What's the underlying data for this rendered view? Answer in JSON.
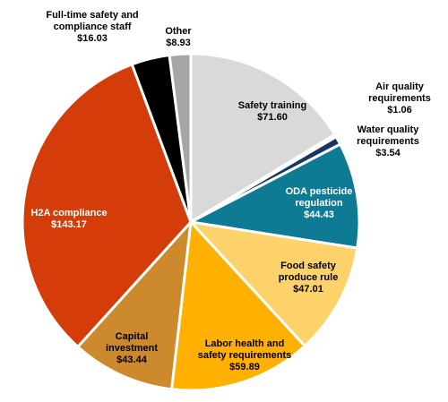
{
  "chart_data": {
    "type": "pie",
    "start": "top",
    "direction": "clockwise",
    "slices": [
      {
        "key": "safety_training",
        "label": [
          "Safety training",
          "$71.60"
        ],
        "value": 71.6,
        "color": "#d9d9d9",
        "text_color": "#000000"
      },
      {
        "key": "air_quality",
        "label": [
          "Air quality",
          "requirements",
          "$1.06"
        ],
        "value": 1.06,
        "color": "#ffffff",
        "text_color": "#000000"
      },
      {
        "key": "water_quality",
        "label": [
          "Water quality",
          "requirements",
          "$3.54"
        ],
        "value": 3.54,
        "color": "#17375e",
        "text_color": "#000000"
      },
      {
        "key": "oda_pesticide",
        "label": [
          "ODA pesticide",
          "regulation",
          "$44.43"
        ],
        "value": 44.43,
        "color": "#0e7a94",
        "text_color": "#ffffff"
      },
      {
        "key": "food_safety",
        "label": [
          "Food safety",
          "produce rule",
          "$47.01"
        ],
        "value": 47.01,
        "color": "#fed26b",
        "text_color": "#000000"
      },
      {
        "key": "labor_health",
        "label": [
          "Labor health and",
          "safety requirements",
          "$59.89"
        ],
        "value": 59.89,
        "color": "#ffb000",
        "text_color": "#000000"
      },
      {
        "key": "capital_investment",
        "label": [
          "Capital",
          "investment",
          "$43.44"
        ],
        "value": 43.44,
        "color": "#cc8a2d",
        "text_color": "#000000"
      },
      {
        "key": "h2a_compliance",
        "label": [
          "H2A compliance",
          "$143.17"
        ],
        "value": 143.17,
        "color": "#d43d0a",
        "text_color": "#ffffff"
      },
      {
        "key": "fulltime_staff",
        "label": [
          "Full-time safety and",
          "compliance staff",
          "$16.03"
        ],
        "value": 16.03,
        "color": "#000000",
        "text_color": "#000000"
      },
      {
        "key": "other",
        "label": [
          "Other",
          "$8.93"
        ],
        "value": 8.93,
        "color": "#a6a6a6",
        "text_color": "#000000"
      }
    ]
  }
}
